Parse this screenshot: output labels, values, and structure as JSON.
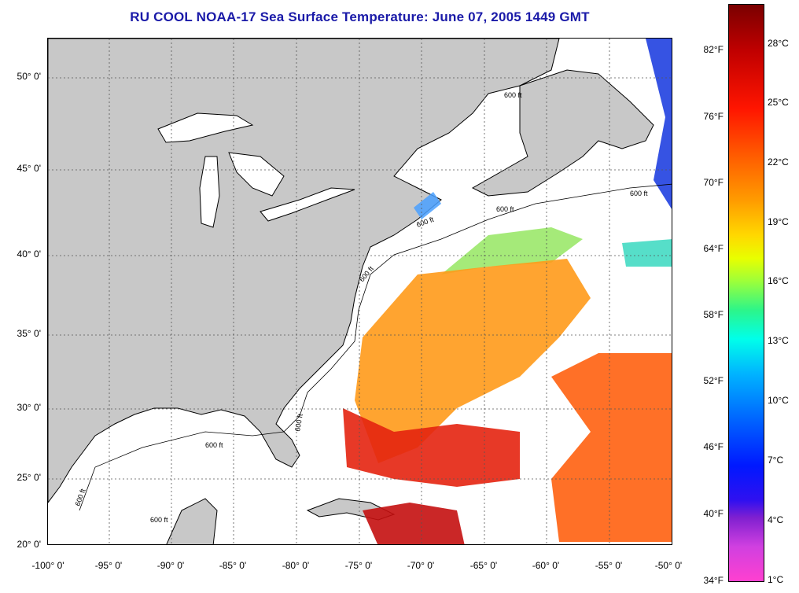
{
  "title": "RU COOL  NOAA-17  Sea Surface Temperature:  June 07, 2005 1449 GMT",
  "map": {
    "lat_labels": [
      "50° 0'",
      "45° 0'",
      "40° 0'",
      "35° 0'",
      "30° 0'",
      "25° 0'",
      "20° 0'"
    ],
    "lon_labels": [
      "-100° 0'",
      "-95° 0'",
      "-90° 0'",
      "-85° 0'",
      "-80° 0'",
      "-75° 0'",
      "-70° 0'",
      "-65° 0'",
      "-60° 0'",
      "-55° 0'",
      "-50° 0'"
    ],
    "contour_labels": [
      "600 ft",
      "600 ft",
      "600 ft",
      "600 ft",
      "600 ft",
      "600 ft",
      "600 ft",
      "600 ft",
      "600 ft"
    ],
    "colors": {
      "land": "#c8c8c8",
      "grid": "#555555",
      "ocean_nodata": "#ffffff"
    }
  },
  "colorbar": {
    "fahrenheit": [
      "82°F",
      "76°F",
      "70°F",
      "64°F",
      "58°F",
      "52°F",
      "46°F",
      "40°F",
      "34°F"
    ],
    "celsius": [
      "28°C",
      "25°C",
      "22°C",
      "19°C",
      "16°C",
      "13°C",
      "10°C",
      "7°C",
      "4°C",
      "1°C"
    ]
  }
}
